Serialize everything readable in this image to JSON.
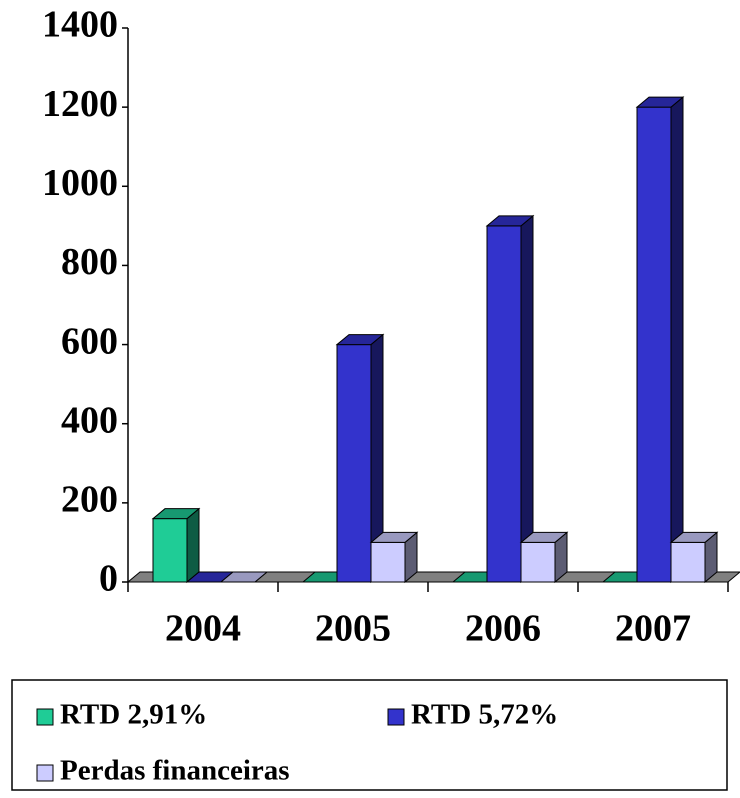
{
  "chart_data": {
    "type": "bar3d",
    "categories": [
      "2004",
      "2005",
      "2006",
      "2007"
    ],
    "series": [
      {
        "name": "RTD 2,91%",
        "color": "#1fcc96",
        "values": [
          160,
          0,
          0,
          0
        ]
      },
      {
        "name": "RTD 5,72%",
        "color": "#3333cc",
        "values": [
          0,
          600,
          900,
          1200
        ]
      },
      {
        "name": "Perdas financeiras",
        "color": "#ccccff",
        "values": [
          0,
          100,
          100,
          100
        ]
      }
    ],
    "ylim": [
      0,
      1400
    ],
    "yticks": [
      0,
      200,
      400,
      600,
      800,
      1000,
      1200,
      1400
    ]
  }
}
